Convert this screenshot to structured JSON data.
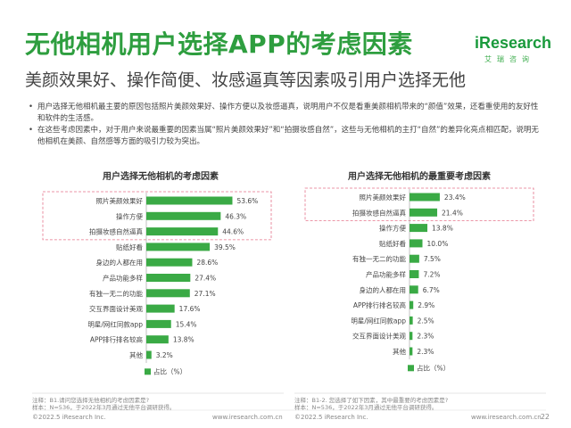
{
  "header": {
    "title": "无他相机用户选择APP的考虑因素",
    "subtitle": "美颜效果好、操作简便、妆感逼真等因素吸引用户选择无他",
    "logo": "iResearch",
    "logo_sub": "艾瑞咨询"
  },
  "bullets": [
    "用户选择无他相机最主要的原因包括照片美颜效果好、操作方便以及妆感逼真，说明用户不仅是看重美颜相机带来的“颜值”效果，还看重使用的友好性和软件的生活感。",
    "在这些考虑因素中，对于用户来说最重要的因素当属“照片美颜效果好”和“拍摄妆感自然”，这些与无他相机的主打“自然”的差异化亮点相匹配，说明无他相机在美颜、自然感等方面的吸引力较为突出。"
  ],
  "chart_data": [
    {
      "type": "bar",
      "orientation": "horizontal",
      "title": "用户选择无他相机的考虑因素",
      "categories": [
        "照片美颜效果好",
        "操作方便",
        "拍摄妆感自然逼真",
        "贴纸好看",
        "身边的人都在用",
        "产品功能多样",
        "有独一无二的功能",
        "交互界面设计美观",
        "明星/网红同款app",
        "APP排行排名较高",
        "其他"
      ],
      "values": [
        53.6,
        46.3,
        44.6,
        39.5,
        28.6,
        27.4,
        27.1,
        17.6,
        15.4,
        13.8,
        3.2
      ],
      "value_labels": [
        "53.6%",
        "46.3%",
        "44.6%",
        "39.5%",
        "28.6%",
        "27.4%",
        "27.1%",
        "17.6%",
        "15.4%",
        "13.8%",
        "3.2%"
      ],
      "highlighted": 3,
      "legend": "占比（%）",
      "color": "#3aaa45"
    },
    {
      "type": "bar",
      "orientation": "horizontal",
      "title": "用户选择无他相机的最重要考虑因素",
      "categories": [
        "照片美颜效果好",
        "拍摄妆感自然逼真",
        "操作方便",
        "贴纸好看",
        "有独一无二的功能",
        "产品功能多样",
        "身边的人都在用",
        "APP排行排名较高",
        "明星/网红同款app",
        "交互界面设计美观",
        "其他"
      ],
      "values": [
        23.4,
        21.4,
        13.8,
        10.0,
        7.5,
        7.2,
        6.7,
        2.9,
        2.5,
        2.3,
        2.3
      ],
      "value_labels": [
        "23.4%",
        "21.4%",
        "13.8%",
        "10.0%",
        "7.5%",
        "7.2%",
        "6.7%",
        "2.9%",
        "2.5%",
        "2.3%",
        "2.3%"
      ],
      "highlighted": 2,
      "legend": "占比（%）",
      "color": "#3aaa45"
    }
  ],
  "notes": [
    {
      "line1": "注释：B1.请问您选择无他相机的考虑因素是?",
      "line2": "样本：N=536，于2022年3月通过无他平台调研获得。"
    },
    {
      "line1": "注释：B1-2. 您选择了如下因素，其中最重要的考虑因素是?",
      "line2": "样本：N=536，于2022年3月通过无他平台调研获得。"
    }
  ],
  "footer": {
    "copyright": "©2022.5 iResearch Inc.",
    "url": "www.iresearch.com.cn",
    "page": "22"
  }
}
